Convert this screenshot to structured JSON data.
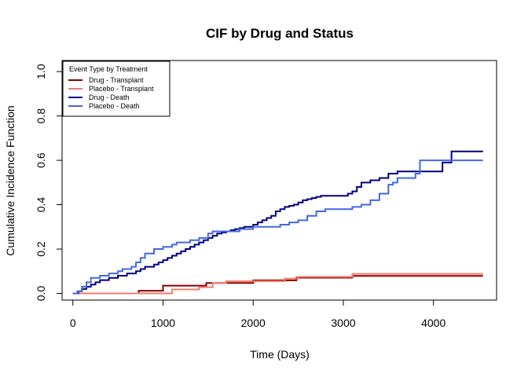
{
  "chart_data": {
    "type": "line",
    "step": true,
    "title": "CIF by Drug and Status",
    "xlabel": "Time (Days)",
    "ylabel": "Cumulative Incidence Function",
    "xlim": [
      -120,
      4700
    ],
    "ylim": [
      -0.03,
      1.05
    ],
    "xticks": [
      0,
      1000,
      2000,
      3000,
      4000
    ],
    "yticks": [
      0.0,
      0.2,
      0.4,
      0.6,
      0.8,
      1.0
    ],
    "ytick_labels": [
      "0.0",
      "0.2",
      "0.4",
      "0.6",
      "0.8",
      "1.0"
    ],
    "grid": false,
    "legend": {
      "title": "Event Type by Treatment",
      "position": "top-left"
    },
    "series": [
      {
        "name": "Drug - Transplant",
        "color": "#8B0000",
        "x": [
          0,
          690,
          730,
          1000,
          1450,
          1480,
          2000,
          2300,
          2480,
          3100,
          4550
        ],
        "y": [
          0,
          0,
          0.012,
          0.035,
          0.035,
          0.047,
          0.059,
          0.059,
          0.071,
          0.079,
          0.079
        ]
      },
      {
        "name": "Placebo - Transplant",
        "color": "#F47C6E",
        "x": [
          0,
          930,
          1100,
          1400,
          1550,
          1700,
          2250,
          2350,
          2500,
          3100,
          4550
        ],
        "y": [
          0,
          0,
          0.018,
          0.028,
          0.046,
          0.055,
          0.055,
          0.067,
          0.075,
          0.088,
          0.088
        ]
      },
      {
        "name": "Drug - Death",
        "color": "#000080",
        "x": [
          0,
          60,
          100,
          150,
          200,
          250,
          300,
          400,
          500,
          600,
          700,
          750,
          800,
          900,
          950,
          1000,
          1050,
          1100,
          1150,
          1200,
          1250,
          1300,
          1350,
          1400,
          1450,
          1500,
          1550,
          1600,
          1650,
          1700,
          1750,
          1800,
          1850,
          1900,
          2000,
          2050,
          2100,
          2150,
          2200,
          2250,
          2300,
          2350,
          2400,
          2450,
          2500,
          2550,
          2600,
          2650,
          2700,
          2750,
          2800,
          2850,
          3000,
          3050,
          3100,
          3150,
          3200,
          3300,
          3400,
          3500,
          3600,
          3800,
          4000,
          4100,
          4200,
          4550
        ],
        "y": [
          0,
          0.01,
          0.02,
          0.03,
          0.04,
          0.05,
          0.06,
          0.07,
          0.08,
          0.09,
          0.1,
          0.11,
          0.12,
          0.13,
          0.14,
          0.15,
          0.16,
          0.17,
          0.18,
          0.19,
          0.2,
          0.21,
          0.22,
          0.23,
          0.24,
          0.25,
          0.26,
          0.27,
          0.275,
          0.28,
          0.285,
          0.29,
          0.295,
          0.3,
          0.31,
          0.32,
          0.33,
          0.34,
          0.35,
          0.37,
          0.38,
          0.39,
          0.395,
          0.4,
          0.41,
          0.42,
          0.425,
          0.43,
          0.435,
          0.44,
          0.44,
          0.44,
          0.44,
          0.45,
          0.46,
          0.48,
          0.5,
          0.51,
          0.52,
          0.54,
          0.55,
          0.55,
          0.55,
          0.59,
          0.64,
          0.64
        ]
      },
      {
        "name": "Placebo - Death",
        "color": "#4169E1",
        "x": [
          0,
          50,
          100,
          150,
          200,
          300,
          400,
          500,
          550,
          650,
          700,
          750,
          800,
          900,
          1000,
          1100,
          1150,
          1200,
          1300,
          1400,
          1500,
          1550,
          1700,
          1850,
          2000,
          2100,
          2200,
          2300,
          2400,
          2500,
          2600,
          2700,
          2800,
          3000,
          3050,
          3100,
          3200,
          3300,
          3400,
          3500,
          3550,
          3600,
          3800,
          3850,
          4000,
          4200,
          4550
        ],
        "y": [
          0,
          0.01,
          0.03,
          0.05,
          0.07,
          0.08,
          0.09,
          0.1,
          0.11,
          0.12,
          0.14,
          0.16,
          0.18,
          0.2,
          0.21,
          0.22,
          0.23,
          0.23,
          0.24,
          0.25,
          0.27,
          0.28,
          0.28,
          0.29,
          0.3,
          0.3,
          0.3,
          0.31,
          0.32,
          0.33,
          0.35,
          0.37,
          0.38,
          0.38,
          0.38,
          0.39,
          0.4,
          0.42,
          0.45,
          0.49,
          0.5,
          0.52,
          0.54,
          0.6,
          0.6,
          0.6,
          0.6
        ]
      }
    ]
  }
}
